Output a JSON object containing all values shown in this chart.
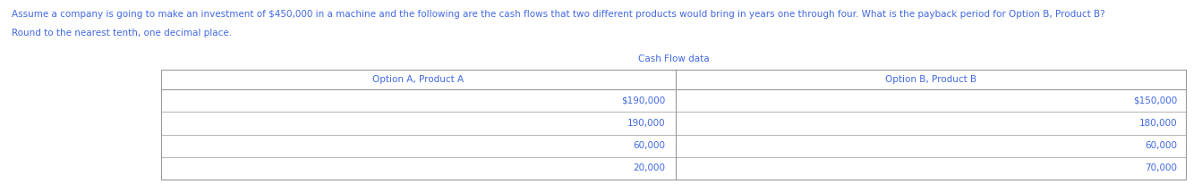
{
  "title_text": "Assume a company is going to make an investment of $450,000 in a machine and the following are the cash flows that two different products would bring in years one through four. What is the payback period for Option B, Product B?",
  "subtitle_text": "Round to the nearest tenth, one decimal place.",
  "table_title": "Cash Flow data",
  "col1_header": "Option A, Product A",
  "col2_header": "Option B, Product B",
  "col1_values": [
    "$190,000",
    "190,000",
    "60,000",
    "20,000"
  ],
  "col2_values": [
    "$150,000",
    "180,000",
    "60,000",
    "70,000"
  ],
  "text_color": "#4169E1",
  "table_line_color": "#999999",
  "bg_color": "#ffffff",
  "font_size_title": 7.5,
  "font_size_subtitle": 7.5,
  "font_size_table_title": 7.5,
  "font_size_header": 7.5,
  "font_size_data": 7.5
}
